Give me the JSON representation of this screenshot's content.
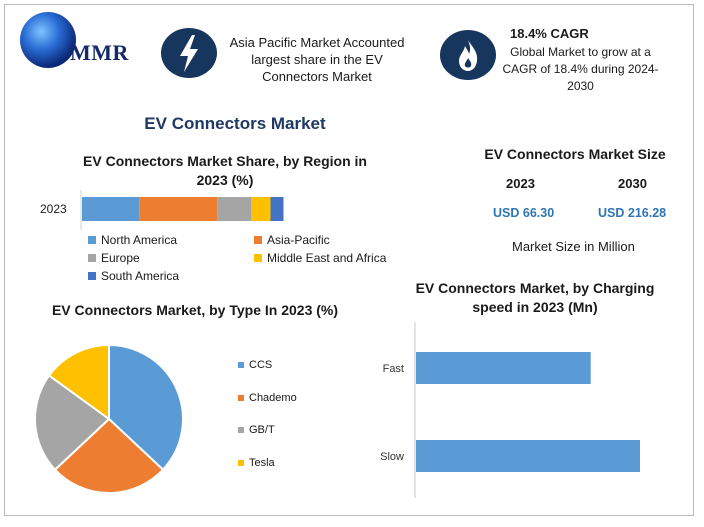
{
  "logo": {
    "text": "MMR"
  },
  "header": {
    "left_text": "Asia Pacific Market Accounted largest share in the EV Connectors Market",
    "right_title": "18.4% CAGR",
    "right_text": "Global Market to grow at a CAGR of 18.4% during 2024-2030"
  },
  "main_title": "EV Connectors Market",
  "market_size": {
    "title": "EV Connectors Market Size",
    "years": [
      "2023",
      "2030"
    ],
    "values": [
      "USD 66.30",
      "USD 216.28"
    ],
    "caption": "Market Size in Million"
  },
  "chart_data": [
    {
      "type": "bar",
      "orientation": "horizontal-stacked",
      "title": "EV Connectors Market Share, by Region in 2023 (%)",
      "categories": [
        "2023"
      ],
      "series": [
        {
          "name": "North America",
          "values": [
            22
          ],
          "color": "#5b9bd5"
        },
        {
          "name": "Asia-Pacific",
          "values": [
            30
          ],
          "color": "#ed7d31"
        },
        {
          "name": "Europe",
          "values": [
            13
          ],
          "color": "#a5a5a5"
        },
        {
          "name": "Middle East and Africa",
          "values": [
            7.5
          ],
          "color": "#ffc000"
        },
        {
          "name": "South America",
          "values": [
            5
          ],
          "color": "#4472c4"
        }
      ],
      "legend": "bottom"
    },
    {
      "type": "pie",
      "title": "EV Connectors Market, by Type In 2023 (%)",
      "labels": [
        "CCS",
        "Chademo",
        "GB/T",
        "Tesla"
      ],
      "values": [
        37,
        26,
        22,
        15
      ],
      "colors": [
        "#5b9bd5",
        "#ed7d31",
        "#a5a5a5",
        "#ffc000"
      ],
      "legend": "right"
    },
    {
      "type": "bar",
      "orientation": "horizontal",
      "title": "EV Connectors Market, by Charging speed in 2023 (Mn)",
      "categories": [
        "Fast",
        "Slow"
      ],
      "values": [
        39,
        50
      ],
      "color": "#5b9bd5"
    }
  ]
}
